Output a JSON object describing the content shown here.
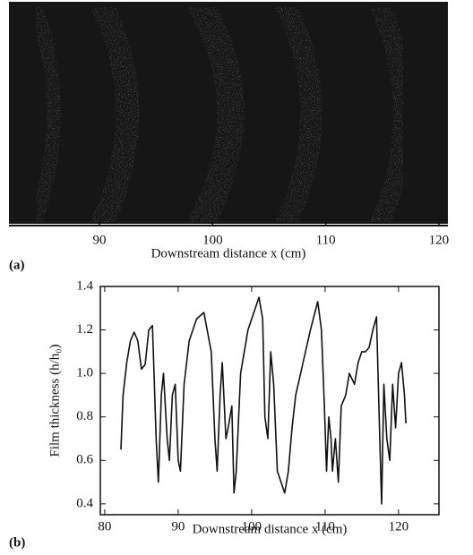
{
  "chart_data": [
    {
      "type": "image",
      "panel_label": "(a)",
      "xlabel": "Downstream distance  x (cm)",
      "xlim": [
        82,
        120.8
      ],
      "xticks": [
        90,
        100,
        110,
        120
      ]
    },
    {
      "type": "line",
      "panel_label": "(b)",
      "xlabel": "Downstream distance  x (cm)",
      "ylabel": "Film thickness (h/h₀)",
      "x": [
        82.2,
        82.5,
        83,
        83.5,
        84,
        84.5,
        85,
        85.5,
        86,
        86.5,
        87,
        87.3,
        87.7,
        88,
        88.5,
        88.8,
        89.2,
        89.6,
        90,
        90.3,
        90.8,
        91.5,
        92.5,
        93.5,
        94.5,
        95,
        95.3,
        95.7,
        96,
        96.5,
        96.8,
        97.3,
        97.6,
        97.9,
        98.5,
        99.5,
        100.5,
        101,
        101.5,
        101.8,
        102.2,
        102.6,
        103,
        103.5,
        104,
        104.5,
        105,
        105.5,
        106,
        107,
        108,
        109,
        109.5,
        109.9,
        110.2,
        110.5,
        110.8,
        111,
        111.4,
        111.8,
        112.2,
        112.8,
        113.3,
        114,
        114.5,
        115,
        115.5,
        116,
        116.5,
        117,
        117.4,
        117.7,
        118,
        118.4,
        118.8,
        119.2,
        119.6,
        120,
        120.4,
        120.8,
        121
      ],
      "series": [
        {
          "color": "#111111",
          "values": [
            0.65,
            0.9,
            1.05,
            1.15,
            1.19,
            1.15,
            1.02,
            1.04,
            1.2,
            1.22,
            0.7,
            0.5,
            0.9,
            1.0,
            0.7,
            0.6,
            0.9,
            0.95,
            0.6,
            0.55,
            0.95,
            1.15,
            1.25,
            1.28,
            1.1,
            0.7,
            0.55,
            0.9,
            1.05,
            0.7,
            0.75,
            0.85,
            0.45,
            0.55,
            1.0,
            1.2,
            1.3,
            1.35,
            1.25,
            0.8,
            0.7,
            1.1,
            0.95,
            0.55,
            0.5,
            0.45,
            0.55,
            0.75,
            0.9,
            1.05,
            1.2,
            1.33,
            1.2,
            0.85,
            0.55,
            0.8,
            0.7,
            0.55,
            0.7,
            0.5,
            0.85,
            0.9,
            1.0,
            0.95,
            1.05,
            1.1,
            1.1,
            1.12,
            1.2,
            1.26,
            0.75,
            0.4,
            0.95,
            0.7,
            0.6,
            0.95,
            0.75,
            1.0,
            1.05,
            0.9,
            0.77
          ]
        }
      ],
      "xlim": [
        79.4,
        125.5
      ],
      "ylim": [
        0.35,
        1.4
      ],
      "xticks": [
        80,
        90,
        100,
        110,
        120
      ],
      "yticks": [
        0.4,
        0.6,
        0.8,
        {
          "value": 1,
          "label": "1.0"
        },
        1.2,
        1.4
      ]
    }
  ]
}
